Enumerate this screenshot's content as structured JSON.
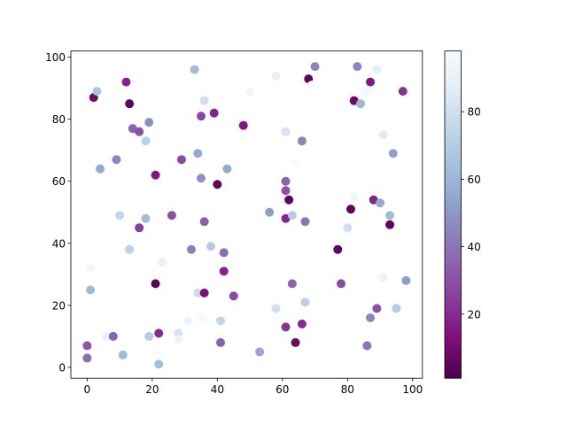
{
  "chart_data": {
    "type": "scatter",
    "title": "",
    "xlabel": "",
    "ylabel": "",
    "xlim": [
      -5,
      103
    ],
    "ylim": [
      -3.5,
      102
    ],
    "xticks": [
      0,
      20,
      40,
      60,
      80,
      100
    ],
    "yticks": [
      0,
      20,
      40,
      60,
      80,
      100
    ],
    "grid": false,
    "colormap": "BuPu_r",
    "colorbar": {
      "range": [
        1,
        98
      ],
      "ticks": [
        20,
        40,
        60,
        80
      ]
    },
    "points": [
      {
        "x": 0,
        "y": 3,
        "c": 38
      },
      {
        "x": 0,
        "y": 7,
        "c": 32
      },
      {
        "x": 1,
        "y": 32,
        "c": 95
      },
      {
        "x": 1,
        "y": 25,
        "c": 62
      },
      {
        "x": 2,
        "y": 87,
        "c": 8
      },
      {
        "x": 3,
        "y": 89,
        "c": 66
      },
      {
        "x": 4,
        "y": 64,
        "c": 56
      },
      {
        "x": 6,
        "y": 10,
        "c": 90
      },
      {
        "x": 8,
        "y": 10,
        "c": 35
      },
      {
        "x": 9,
        "y": 67,
        "c": 45
      },
      {
        "x": 10,
        "y": 49,
        "c": 75
      },
      {
        "x": 11,
        "y": 4,
        "c": 62
      },
      {
        "x": 12,
        "y": 92,
        "c": 18
      },
      {
        "x": 13,
        "y": 85,
        "c": 5
      },
      {
        "x": 13,
        "y": 38,
        "c": 73
      },
      {
        "x": 14,
        "y": 77,
        "c": 35
      },
      {
        "x": 16,
        "y": 76,
        "c": 30
      },
      {
        "x": 16,
        "y": 45,
        "c": 25
      },
      {
        "x": 18,
        "y": 73,
        "c": 72
      },
      {
        "x": 18,
        "y": 48,
        "c": 62
      },
      {
        "x": 19,
        "y": 79,
        "c": 48
      },
      {
        "x": 19,
        "y": 10,
        "c": 70
      },
      {
        "x": 21,
        "y": 63,
        "c": 97
      },
      {
        "x": 21,
        "y": 62,
        "c": 15
      },
      {
        "x": 21,
        "y": 27,
        "c": 4
      },
      {
        "x": 22,
        "y": 11,
        "c": 20
      },
      {
        "x": 22,
        "y": 4,
        "c": 98
      },
      {
        "x": 22,
        "y": 1,
        "c": 63
      },
      {
        "x": 23,
        "y": 34,
        "c": 90
      },
      {
        "x": 26,
        "y": 49,
        "c": 30
      },
      {
        "x": 28,
        "y": 11,
        "c": 82
      },
      {
        "x": 28,
        "y": 9,
        "c": 93
      },
      {
        "x": 29,
        "y": 67,
        "c": 28
      },
      {
        "x": 31,
        "y": 15,
        "c": 92
      },
      {
        "x": 32,
        "y": 38,
        "c": 43
      },
      {
        "x": 33,
        "y": 96,
        "c": 62
      },
      {
        "x": 34,
        "y": 69,
        "c": 56
      },
      {
        "x": 34,
        "y": 24,
        "c": 78
      },
      {
        "x": 35,
        "y": 16,
        "c": 97
      },
      {
        "x": 35,
        "y": 81,
        "c": 28
      },
      {
        "x": 35,
        "y": 61,
        "c": 48
      },
      {
        "x": 36,
        "y": 86,
        "c": 80
      },
      {
        "x": 36,
        "y": 47,
        "c": 35
      },
      {
        "x": 36,
        "y": 24,
        "c": 12
      },
      {
        "x": 38,
        "y": 39,
        "c": 70
      },
      {
        "x": 39,
        "y": 82,
        "c": 18
      },
      {
        "x": 40,
        "y": 59,
        "c": 5
      },
      {
        "x": 41,
        "y": 15,
        "c": 75
      },
      {
        "x": 41,
        "y": 8,
        "c": 35
      },
      {
        "x": 42,
        "y": 37,
        "c": 38
      },
      {
        "x": 42,
        "y": 31,
        "c": 18
      },
      {
        "x": 43,
        "y": 64,
        "c": 56
      },
      {
        "x": 45,
        "y": 23,
        "c": 28
      },
      {
        "x": 48,
        "y": 78,
        "c": 15
      },
      {
        "x": 50,
        "y": 89,
        "c": 95
      },
      {
        "x": 53,
        "y": 5,
        "c": 56
      },
      {
        "x": 56,
        "y": 50,
        "c": 52
      },
      {
        "x": 58,
        "y": 94,
        "c": 90
      },
      {
        "x": 58,
        "y": 19,
        "c": 80
      },
      {
        "x": 61,
        "y": 76,
        "c": 82
      },
      {
        "x": 61,
        "y": 60,
        "c": 35
      },
      {
        "x": 61,
        "y": 57,
        "c": 30
      },
      {
        "x": 61,
        "y": 54,
        "c": 92
      },
      {
        "x": 62,
        "y": 54,
        "c": 5
      },
      {
        "x": 61,
        "y": 48,
        "c": 18
      },
      {
        "x": 61,
        "y": 13,
        "c": 22
      },
      {
        "x": 63,
        "y": 49,
        "c": 70
      },
      {
        "x": 63,
        "y": 27,
        "c": 35
      },
      {
        "x": 64,
        "y": 66,
        "c": 97
      },
      {
        "x": 64,
        "y": 8,
        "c": 8
      },
      {
        "x": 66,
        "y": 73,
        "c": 45
      },
      {
        "x": 66,
        "y": 14,
        "c": 20
      },
      {
        "x": 67,
        "y": 47,
        "c": 40
      },
      {
        "x": 67,
        "y": 21,
        "c": 72
      },
      {
        "x": 68,
        "y": 93,
        "c": 5
      },
      {
        "x": 69,
        "y": 91,
        "c": 97
      },
      {
        "x": 70,
        "y": 97,
        "c": 45
      },
      {
        "x": 77,
        "y": 38,
        "c": 5
      },
      {
        "x": 78,
        "y": 27,
        "c": 28
      },
      {
        "x": 80,
        "y": 45,
        "c": 80
      },
      {
        "x": 81,
        "y": 51,
        "c": 5
      },
      {
        "x": 82,
        "y": 86,
        "c": 8
      },
      {
        "x": 82,
        "y": 55,
        "c": 94
      },
      {
        "x": 83,
        "y": 97,
        "c": 45
      },
      {
        "x": 84,
        "y": 85,
        "c": 60
      },
      {
        "x": 86,
        "y": 89,
        "c": 95
      },
      {
        "x": 86,
        "y": 7,
        "c": 40
      },
      {
        "x": 87,
        "y": 92,
        "c": 15
      },
      {
        "x": 87,
        "y": 16,
        "c": 45
      },
      {
        "x": 88,
        "y": 54,
        "c": 18
      },
      {
        "x": 89,
        "y": 96,
        "c": 88
      },
      {
        "x": 89,
        "y": 19,
        "c": 30
      },
      {
        "x": 90,
        "y": 53,
        "c": 56
      },
      {
        "x": 91,
        "y": 75,
        "c": 86
      },
      {
        "x": 91,
        "y": 29,
        "c": 92
      },
      {
        "x": 93,
        "y": 49,
        "c": 62
      },
      {
        "x": 93,
        "y": 46,
        "c": 5
      },
      {
        "x": 94,
        "y": 69,
        "c": 52
      },
      {
        "x": 95,
        "y": 19,
        "c": 70
      },
      {
        "x": 97,
        "y": 89,
        "c": 22
      },
      {
        "x": 98,
        "y": 28,
        "c": 52
      }
    ]
  }
}
